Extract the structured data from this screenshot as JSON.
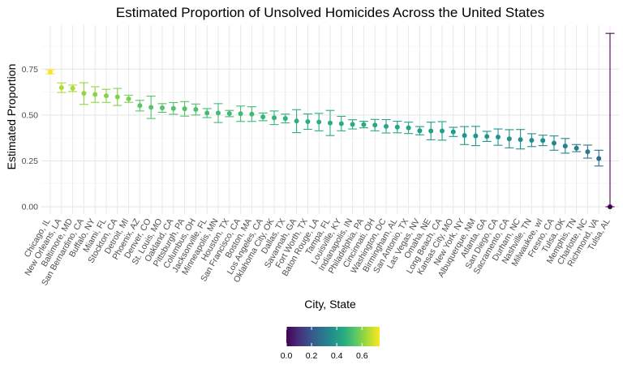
{
  "chart_data": {
    "type": "scatter",
    "title": "Estimated Proportion of Unsolved Homicides Across the United States",
    "xlabel": "City, State",
    "ylabel": "Estimated Proportion",
    "ylim": [
      -0.04,
      0.99
    ],
    "yticks": [
      0.0,
      0.25,
      0.5,
      0.75
    ],
    "ytick_labels": [
      "0.00",
      "0.25",
      "0.50",
      "0.75"
    ],
    "grid": true,
    "legend": {
      "placement": "bottom",
      "type": "colorbar",
      "palette": "viridis",
      "range": [
        0,
        0.74
      ],
      "ticks": [
        0.0,
        0.2,
        0.4,
        0.6
      ],
      "tick_labels": [
        "0.0",
        "0.2",
        "0.4",
        "0.6"
      ]
    },
    "categories": [
      "Chicago, IL",
      "New Orleans, LA",
      "Baltimore, MD",
      "San Bernardino, CA",
      "Buffalo, NY",
      "Miami, FL",
      "Stockton, CA",
      "Detroit, MI",
      "Phoenix, AZ",
      "Denver, CO",
      "St. Louis, MO",
      "Oakland, CA",
      "Pittsburgh, PA",
      "Columbus, OH",
      "Jacksonville, FL",
      "Minneapolis, MN",
      "Houston, TX",
      "San Francisco, CA",
      "Boston, MA",
      "Los Angeles, CA",
      "Oklahoma City, OK",
      "Dallas, TX",
      "Savannah, GA",
      "Fort Worth, TX",
      "Baton Rouge, LA",
      "Tampa, FL",
      "Louisville, KY",
      "Indianapolis, IN",
      "Philadelphia, PA",
      "Cincinnati, OH",
      "Washington, DC",
      "Birmingham, AL",
      "San Antonio, TX",
      "Las Vegas, NV",
      "Omaha, NE",
      "Long Beach, CA",
      "Kansas City, MO",
      "New York, NY",
      "Albuquerque, NM",
      "Atlanta, GA",
      "San Diego, CA",
      "Sacramento, CA",
      "Durham, NC",
      "Nashville, TN",
      "Milwaukee, wI",
      "Fresno, CA",
      "Tulsa, OK",
      "Memphis, TN",
      "Charlotte, NC",
      "Richmond, VA",
      "Tulsa, AL"
    ],
    "estimate": [
      0.735,
      0.649,
      0.646,
      0.618,
      0.612,
      0.605,
      0.599,
      0.588,
      0.551,
      0.542,
      0.539,
      0.536,
      0.534,
      0.53,
      0.511,
      0.511,
      0.508,
      0.507,
      0.505,
      0.49,
      0.485,
      0.481,
      0.467,
      0.464,
      0.462,
      0.457,
      0.453,
      0.449,
      0.448,
      0.445,
      0.438,
      0.434,
      0.43,
      0.414,
      0.413,
      0.413,
      0.408,
      0.388,
      0.386,
      0.383,
      0.38,
      0.37,
      0.366,
      0.362,
      0.361,
      0.347,
      0.331,
      0.319,
      0.3,
      0.263,
      0.0
    ],
    "ci_low": [
      0.724,
      0.623,
      0.628,
      0.558,
      0.569,
      0.569,
      0.552,
      0.569,
      0.522,
      0.481,
      0.515,
      0.504,
      0.494,
      0.5,
      0.486,
      0.459,
      0.491,
      0.465,
      0.465,
      0.469,
      0.448,
      0.457,
      0.404,
      0.422,
      0.414,
      0.388,
      0.414,
      0.424,
      0.43,
      0.414,
      0.402,
      0.403,
      0.399,
      0.392,
      0.365,
      0.363,
      0.383,
      0.339,
      0.333,
      0.356,
      0.335,
      0.321,
      0.315,
      0.328,
      0.333,
      0.308,
      0.292,
      0.3,
      0.265,
      0.222,
      0.0
    ],
    "ci_high": [
      0.747,
      0.675,
      0.663,
      0.676,
      0.654,
      0.64,
      0.645,
      0.608,
      0.58,
      0.603,
      0.562,
      0.568,
      0.573,
      0.56,
      0.535,
      0.562,
      0.525,
      0.549,
      0.545,
      0.511,
      0.522,
      0.505,
      0.529,
      0.506,
      0.509,
      0.525,
      0.493,
      0.474,
      0.466,
      0.476,
      0.475,
      0.466,
      0.461,
      0.437,
      0.461,
      0.464,
      0.433,
      0.437,
      0.438,
      0.411,
      0.424,
      0.42,
      0.421,
      0.398,
      0.39,
      0.386,
      0.372,
      0.339,
      0.336,
      0.308,
      0.945
    ]
  }
}
